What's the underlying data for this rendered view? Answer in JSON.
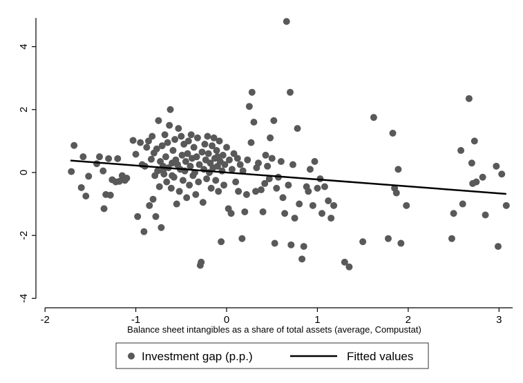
{
  "chart_data": {
    "type": "scatter",
    "xlabel": "Balance sheet intangibles as a share of total assets (average, Compustat)",
    "ylabel": "",
    "xlim": [
      -2.1,
      3.15
    ],
    "ylim": [
      -4.3,
      5.0
    ],
    "xticks": [
      -2,
      -1,
      0,
      1,
      2,
      3
    ],
    "xtick_labels": [
      "-2",
      "-1",
      "0",
      "1",
      "2",
      "3"
    ],
    "yticks": [
      -4,
      -2,
      0,
      2,
      4
    ],
    "ytick_labels": [
      "-4",
      "-2",
      "0",
      "2",
      "4"
    ],
    "grid": false,
    "legend_position": "bottom",
    "colors": {
      "points": "#595959",
      "fit_line": "#000000",
      "axes": "#000000"
    },
    "series": [
      {
        "name": "Investment gap (p.p.)",
        "kind": "scatter",
        "points": [
          [
            -1.71,
            0.03
          ],
          [
            -1.68,
            0.86
          ],
          [
            -1.6,
            -0.48
          ],
          [
            -1.58,
            0.5
          ],
          [
            -1.55,
            -0.75
          ],
          [
            -1.52,
            -0.12
          ],
          [
            -1.43,
            0.28
          ],
          [
            -1.4,
            0.5
          ],
          [
            -1.36,
            0.05
          ],
          [
            -1.35,
            -1.15
          ],
          [
            -1.33,
            -0.7
          ],
          [
            -1.3,
            0.44
          ],
          [
            -1.28,
            -0.72
          ],
          [
            -1.26,
            -0.23
          ],
          [
            -1.22,
            -0.3
          ],
          [
            -1.2,
            0.44
          ],
          [
            -1.18,
            -0.28
          ],
          [
            -1.15,
            -0.1
          ],
          [
            -1.12,
            -0.25
          ],
          [
            -1.1,
            -0.18
          ],
          [
            -1.03,
            1.02
          ],
          [
            -1.0,
            0.58
          ],
          [
            -0.98,
            -1.4
          ],
          [
            -0.95,
            0.95
          ],
          [
            -0.93,
            0.25
          ],
          [
            -0.91,
            -1.88
          ],
          [
            -0.9,
            0.2
          ],
          [
            -0.88,
            0.8
          ],
          [
            -0.86,
            1.0
          ],
          [
            -0.85,
            -1.05
          ],
          [
            -0.83,
            0.42
          ],
          [
            -0.82,
            1.15
          ],
          [
            -0.81,
            -0.85
          ],
          [
            -0.8,
            0.62
          ],
          [
            -0.79,
            -0.1
          ],
          [
            -0.78,
            -1.4
          ],
          [
            -0.77,
            0.75
          ],
          [
            -0.76,
            0.05
          ],
          [
            -0.75,
            1.65
          ],
          [
            -0.74,
            -0.45
          ],
          [
            -0.73,
            0.35
          ],
          [
            -0.72,
            -1.75
          ],
          [
            -0.71,
            0.85
          ],
          [
            -0.7,
            0.2
          ],
          [
            -0.69,
            -0.05
          ],
          [
            -0.68,
            1.2
          ],
          [
            -0.67,
            0.5
          ],
          [
            -0.66,
            -0.3
          ],
          [
            -0.65,
            0.95
          ],
          [
            -0.64,
            0.15
          ],
          [
            -0.63,
            1.5
          ],
          [
            -0.62,
            2.0
          ],
          [
            -0.61,
            -0.5
          ],
          [
            -0.6,
            0.3
          ],
          [
            -0.59,
            0.7
          ],
          [
            -0.58,
            -0.15
          ],
          [
            -0.57,
            1.05
          ],
          [
            -0.56,
            0.4
          ],
          [
            -0.55,
            -1.0
          ],
          [
            -0.54,
            0.25
          ],
          [
            -0.53,
            1.4
          ],
          [
            -0.52,
            -0.6
          ],
          [
            -0.51,
            0.1
          ],
          [
            -0.5,
            1.15
          ],
          [
            -0.49,
            0.55
          ],
          [
            -0.48,
            -0.25
          ],
          [
            -0.47,
            0.9
          ],
          [
            -0.46,
            0.05
          ],
          [
            -0.45,
            0.35
          ],
          [
            -0.44,
            -0.8
          ],
          [
            -0.43,
            0.6
          ],
          [
            -0.42,
            1.0
          ],
          [
            -0.41,
            -0.4
          ],
          [
            -0.4,
            0.2
          ],
          [
            -0.39,
            1.2
          ],
          [
            -0.38,
            0.45
          ],
          [
            -0.37,
            -0.1
          ],
          [
            -0.36,
            0.8
          ],
          [
            -0.35,
            0.0
          ],
          [
            -0.34,
            -0.7
          ],
          [
            -0.33,
            0.5
          ],
          [
            -0.32,
            1.1
          ],
          [
            -0.31,
            -0.3
          ],
          [
            -0.3,
            0.25
          ],
          [
            -0.29,
            -2.95
          ],
          [
            -0.28,
            -2.85
          ],
          [
            -0.27,
            0.65
          ],
          [
            -0.26,
            -0.95
          ],
          [
            -0.25,
            0.1
          ],
          [
            -0.24,
            0.9
          ],
          [
            -0.23,
            0.4
          ],
          [
            -0.22,
            -0.2
          ],
          [
            -0.21,
            1.15
          ],
          [
            -0.2,
            0.6
          ],
          [
            -0.19,
            0.0
          ],
          [
            -0.18,
            0.3
          ],
          [
            -0.17,
            -0.5
          ],
          [
            -0.16,
            0.85
          ],
          [
            -0.15,
            0.15
          ],
          [
            -0.14,
            1.1
          ],
          [
            -0.13,
            0.45
          ],
          [
            -0.12,
            -0.25
          ],
          [
            -0.11,
            0.7
          ],
          [
            -0.1,
            0.2
          ],
          [
            -0.09,
            -0.6
          ],
          [
            -0.08,
            1.0
          ],
          [
            -0.07,
            0.35
          ],
          [
            -0.06,
            -2.2
          ],
          [
            -0.05,
            0.05
          ],
          [
            -0.04,
            0.55
          ],
          [
            -0.03,
            -0.4
          ],
          [
            -0.02,
            0.25
          ],
          [
            0.0,
            0.8
          ],
          [
            0.02,
            -1.15
          ],
          [
            0.03,
            0.4
          ],
          [
            0.05,
            -1.3
          ],
          [
            0.06,
            0.1
          ],
          [
            0.08,
            0.6
          ],
          [
            0.1,
            -0.3
          ],
          [
            0.12,
            0.45
          ],
          [
            0.13,
            -0.6
          ],
          [
            0.15,
            0.25
          ],
          [
            0.17,
            -2.1
          ],
          [
            0.18,
            0.05
          ],
          [
            0.2,
            -1.25
          ],
          [
            0.22,
            -0.7
          ],
          [
            0.23,
            0.4
          ],
          [
            0.25,
            2.1
          ],
          [
            0.27,
            0.95
          ],
          [
            0.28,
            2.55
          ],
          [
            0.3,
            1.6
          ],
          [
            0.32,
            -0.6
          ],
          [
            0.33,
            0.15
          ],
          [
            0.35,
            0.3
          ],
          [
            0.38,
            -0.55
          ],
          [
            0.4,
            -1.25
          ],
          [
            0.42,
            -0.35
          ],
          [
            0.43,
            0.55
          ],
          [
            0.45,
            0.2
          ],
          [
            0.47,
            -0.2
          ],
          [
            0.48,
            1.1
          ],
          [
            0.5,
            0.45
          ],
          [
            0.52,
            1.65
          ],
          [
            0.53,
            -2.25
          ],
          [
            0.55,
            -0.5
          ],
          [
            0.57,
            -0.15
          ],
          [
            0.6,
            0.35
          ],
          [
            0.62,
            -0.8
          ],
          [
            0.64,
            -1.3
          ],
          [
            0.66,
            4.8
          ],
          [
            0.68,
            -0.4
          ],
          [
            0.7,
            2.55
          ],
          [
            0.71,
            -2.3
          ],
          [
            0.73,
            0.25
          ],
          [
            0.75,
            -1.45
          ],
          [
            0.78,
            1.4
          ],
          [
            0.8,
            -1.0
          ],
          [
            0.83,
            -2.75
          ],
          [
            0.85,
            -2.35
          ],
          [
            0.88,
            -0.45
          ],
          [
            0.9,
            -0.6
          ],
          [
            0.92,
            0.1
          ],
          [
            0.95,
            -1.05
          ],
          [
            0.97,
            0.35
          ],
          [
            1.0,
            -0.5
          ],
          [
            1.03,
            -0.2
          ],
          [
            1.05,
            -1.3
          ],
          [
            1.08,
            -0.45
          ],
          [
            1.12,
            -0.9
          ],
          [
            1.15,
            -1.45
          ],
          [
            1.18,
            -1.05
          ],
          [
            1.3,
            -2.85
          ],
          [
            1.35,
            -3.0
          ],
          [
            1.5,
            -2.2
          ],
          [
            1.62,
            1.75
          ],
          [
            1.78,
            -2.1
          ],
          [
            1.83,
            1.25
          ],
          [
            1.85,
            -0.5
          ],
          [
            1.87,
            -0.65
          ],
          [
            1.89,
            0.1
          ],
          [
            1.92,
            -2.25
          ],
          [
            1.98,
            -1.05
          ],
          [
            2.48,
            -2.1
          ],
          [
            2.5,
            -1.3
          ],
          [
            2.58,
            0.7
          ],
          [
            2.6,
            -1.0
          ],
          [
            2.67,
            2.35
          ],
          [
            2.7,
            0.3
          ],
          [
            2.71,
            -0.35
          ],
          [
            2.73,
            1.0
          ],
          [
            2.75,
            -0.3
          ],
          [
            2.82,
            -0.15
          ],
          [
            2.85,
            -1.35
          ],
          [
            2.97,
            0.2
          ],
          [
            2.99,
            -2.35
          ],
          [
            3.03,
            -0.05
          ],
          [
            3.08,
            -1.05
          ],
          [
            -0.7,
            0.05
          ],
          [
            -0.6,
            -0.1
          ],
          [
            -0.1,
            0.5
          ]
        ]
      },
      {
        "name": "Fitted values",
        "kind": "line",
        "points": [
          [
            -1.72,
            0.38
          ],
          [
            3.08,
            -0.68
          ]
        ]
      }
    ]
  }
}
